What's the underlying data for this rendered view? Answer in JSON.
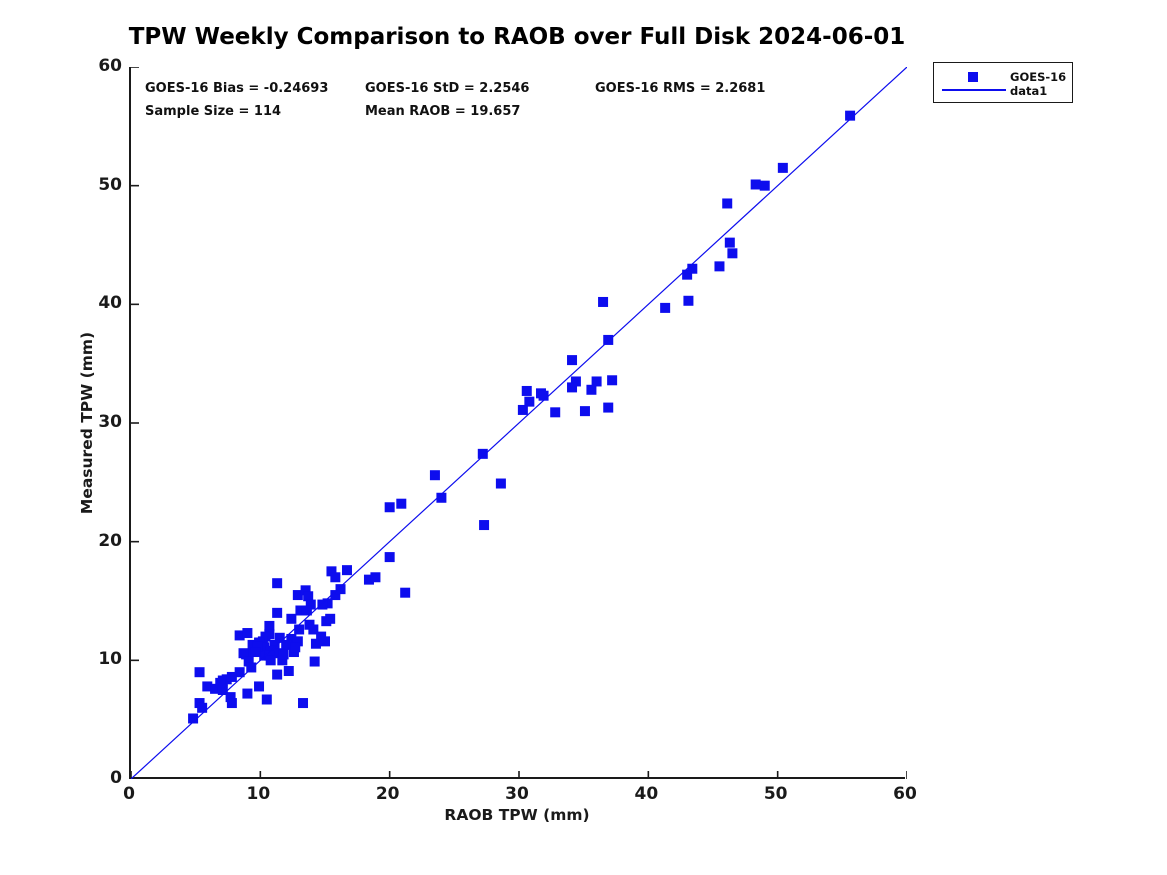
{
  "title": "TPW Weekly Comparison to RAOB over Full Disk 2024-06-01",
  "stats": {
    "bias": "GOES-16 Bias = -0.24693",
    "std": "GOES-16 StD = 2.2546",
    "rms": "GOES-16 RMS = 2.2681",
    "sample_size": "Sample Size = 114",
    "mean_raob": "Mean RAOB = 19.657"
  },
  "legend": {
    "items": [
      {
        "label": "GOES-16",
        "marker": "square"
      },
      {
        "label": "data1",
        "marker": "line"
      }
    ]
  },
  "colors": {
    "accent_blue": "#0d0dee",
    "axis": "#1a1a1a"
  },
  "chart_data": {
    "type": "scatter",
    "title": "TPW Weekly Comparison to RAOB over Full Disk 2024-06-01",
    "xlabel": "RAOB TPW (mm)",
    "ylabel": "Measured TPW (mm)",
    "xlim": [
      0,
      60
    ],
    "ylim": [
      0,
      60
    ],
    "xticks": [
      "0",
      "10",
      "20",
      "30",
      "40",
      "50",
      "60"
    ],
    "yticks": [
      "0",
      "10",
      "20",
      "30",
      "40",
      "50",
      "60"
    ],
    "grid": false,
    "legend_position": "outside-top-right",
    "annotations": [
      "GOES-16 Bias = -0.24693",
      "GOES-16 StD = 2.2546",
      "GOES-16 RMS = 2.2681",
      "Sample Size = 114",
      "Mean RAOB = 19.657"
    ],
    "series": [
      {
        "name": "GOES-16",
        "type": "scatter",
        "marker": "square",
        "color": "#0d0dee",
        "points": [
          [
            55.6,
            55.9
          ],
          [
            50.4,
            51.5
          ],
          [
            48.3,
            50.1
          ],
          [
            49.0,
            50.0
          ],
          [
            46.1,
            48.5
          ],
          [
            46.3,
            45.2
          ],
          [
            46.5,
            44.3
          ],
          [
            45.5,
            43.2
          ],
          [
            43.0,
            42.5
          ],
          [
            43.4,
            43.0
          ],
          [
            36.5,
            40.2
          ],
          [
            43.1,
            40.3
          ],
          [
            41.3,
            39.7
          ],
          [
            36.9,
            37.0
          ],
          [
            37.2,
            33.6
          ],
          [
            36.0,
            33.5
          ],
          [
            35.6,
            32.8
          ],
          [
            35.1,
            31.0
          ],
          [
            36.9,
            31.3
          ],
          [
            34.1,
            35.3
          ],
          [
            34.4,
            33.5
          ],
          [
            34.1,
            33.0
          ],
          [
            30.6,
            32.7
          ],
          [
            31.7,
            32.5
          ],
          [
            31.9,
            32.3
          ],
          [
            30.8,
            31.8
          ],
          [
            30.3,
            31.1
          ],
          [
            32.8,
            30.9
          ],
          [
            27.2,
            27.4
          ],
          [
            28.6,
            24.9
          ],
          [
            27.3,
            21.4
          ],
          [
            23.5,
            25.6
          ],
          [
            24.0,
            23.7
          ],
          [
            20.0,
            22.9
          ],
          [
            20.9,
            23.2
          ],
          [
            20.0,
            18.7
          ],
          [
            21.2,
            15.7
          ],
          [
            15.5,
            17.5
          ],
          [
            15.8,
            17.0
          ],
          [
            16.7,
            17.6
          ],
          [
            18.4,
            16.8
          ],
          [
            18.9,
            17.0
          ],
          [
            15.8,
            15.5
          ],
          [
            16.2,
            16.0
          ],
          [
            12.9,
            15.5
          ],
          [
            13.5,
            15.9
          ],
          [
            13.7,
            15.4
          ],
          [
            13.9,
            14.7
          ],
          [
            13.1,
            14.2
          ],
          [
            13.6,
            14.2
          ],
          [
            15.2,
            14.8
          ],
          [
            14.8,
            14.7
          ],
          [
            13.0,
            12.6
          ],
          [
            13.8,
            13.0
          ],
          [
            14.1,
            12.6
          ],
          [
            15.1,
            13.3
          ],
          [
            15.4,
            13.5
          ],
          [
            14.7,
            12.0
          ],
          [
            11.3,
            16.5
          ],
          [
            11.3,
            14.0
          ],
          [
            12.4,
            13.5
          ],
          [
            10.7,
            12.9
          ],
          [
            10.7,
            12.2
          ],
          [
            10.4,
            12.0
          ],
          [
            11.5,
            11.9
          ],
          [
            12.4,
            11.8
          ],
          [
            12.9,
            11.6
          ],
          [
            12.0,
            11.3
          ],
          [
            11.1,
            11.3
          ],
          [
            10.0,
            11.5
          ],
          [
            10.2,
            11.6
          ],
          [
            8.4,
            12.1
          ],
          [
            9.0,
            12.3
          ],
          [
            9.4,
            11.3
          ],
          [
            9.9,
            11.5
          ],
          [
            10.3,
            11.1
          ],
          [
            10.8,
            10.8
          ],
          [
            8.9,
            10.5
          ],
          [
            10.3,
            10.4
          ],
          [
            10.7,
            10.4
          ],
          [
            10.8,
            10.0
          ],
          [
            9.8,
            11.2
          ],
          [
            9.6,
            10.7
          ],
          [
            8.7,
            10.6
          ],
          [
            11.5,
            10.6
          ],
          [
            12.6,
            10.7
          ],
          [
            11.7,
            10.0
          ],
          [
            14.2,
            9.9
          ],
          [
            14.3,
            11.4
          ],
          [
            15.0,
            11.6
          ],
          [
            12.7,
            11.1
          ],
          [
            11.8,
            10.5
          ],
          [
            12.2,
            9.1
          ],
          [
            11.3,
            8.8
          ],
          [
            13.3,
            6.4
          ],
          [
            10.5,
            6.7
          ],
          [
            5.3,
            9.0
          ],
          [
            8.4,
            9.0
          ],
          [
            7.1,
            8.3
          ],
          [
            7.4,
            8.4
          ],
          [
            7.8,
            8.6
          ],
          [
            5.9,
            7.8
          ],
          [
            6.5,
            7.6
          ],
          [
            9.9,
            7.8
          ],
          [
            7.7,
            6.9
          ],
          [
            7.8,
            6.4
          ],
          [
            9.0,
            7.2
          ],
          [
            5.3,
            6.4
          ],
          [
            5.5,
            6.0
          ],
          [
            4.8,
            5.1
          ],
          [
            6.9,
            8.1
          ],
          [
            7.1,
            7.5
          ],
          [
            9.1,
            9.9
          ],
          [
            9.3,
            9.4
          ]
        ]
      },
      {
        "name": "data1",
        "type": "line",
        "color": "#0d0dee",
        "points": [
          [
            0,
            0
          ],
          [
            60,
            60
          ]
        ]
      }
    ]
  }
}
